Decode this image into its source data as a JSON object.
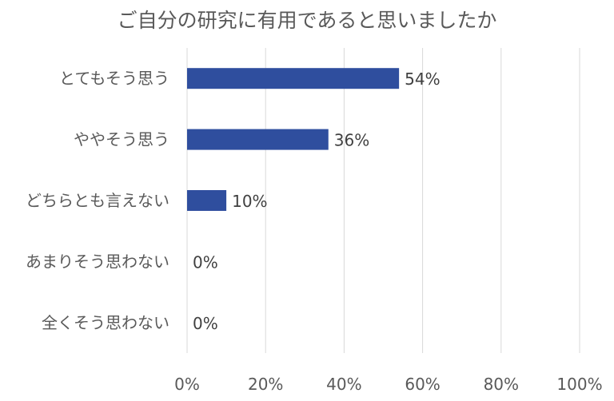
{
  "chart_data": {
    "type": "bar",
    "orientation": "horizontal",
    "title": "ご自分の研究に有用であると思いましたか",
    "categories": [
      "とてもそう思う",
      "ややそう思う",
      "どちらとも言えない",
      "あまりそう思わない",
      "全くそう思わない"
    ],
    "values": [
      54,
      36,
      10,
      0,
      0
    ],
    "data_labels": [
      "54%",
      "36%",
      "10%",
      "0%",
      "0%"
    ],
    "xlabel": "",
    "ylabel": "",
    "xlim": [
      0,
      100
    ],
    "x_ticks": [
      0,
      20,
      40,
      60,
      80,
      100
    ],
    "x_tick_labels": [
      "0%",
      "20%",
      "40%",
      "60%",
      "80%",
      "100%"
    ],
    "grid": "vertical",
    "legend": "none",
    "colors": {
      "bar": "#2F4E9E",
      "grid": "#D9D9D9",
      "text": "#595959"
    }
  }
}
